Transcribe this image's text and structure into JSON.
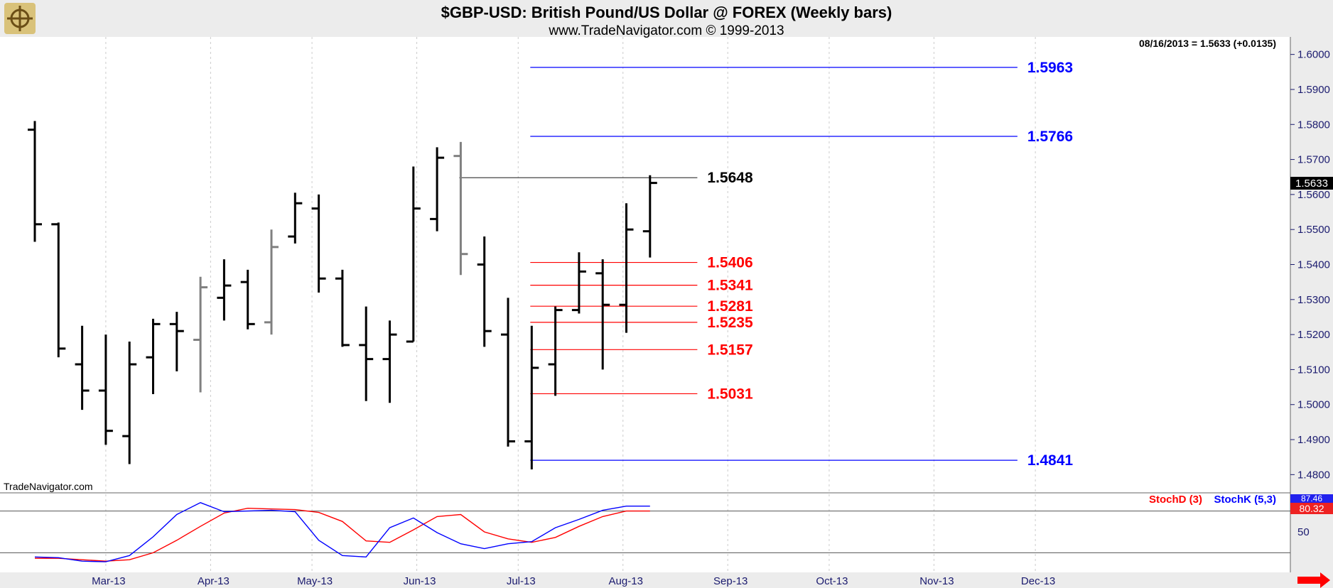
{
  "header": {
    "title": "$GBP-USD:  British Pound/US Dollar @ FOREX  (Weekly bars)",
    "subtitle": "www.TradeNavigator.com © 1999-2013",
    "last_info": "08/16/2013 = 1.5633 (+0.0135)",
    "watermark": "TradeNavigator.com",
    "last_price_tag": "1.5633"
  },
  "colors": {
    "bar": "#000000",
    "bar_gray": "#808080",
    "fib_red": "#ff0000",
    "fib_blue": "#0000ff",
    "stoch_d": "#ff0000",
    "stoch_k": "#0000ff",
    "grid": "#cccccc"
  },
  "chart_data": [
    {
      "type": "ohlc",
      "title": "$GBP-USD:  British Pound/US Dollar @ FOREX  (Weekly bars)",
      "ylim": [
        1.475,
        1.605
      ],
      "y_ticks": [
        "1.6000",
        "1.5900",
        "1.5800",
        "1.5700",
        "1.5600",
        "1.5500",
        "1.5400",
        "1.5300",
        "1.5200",
        "1.5100",
        "1.5000",
        "1.4900",
        "1.4800"
      ],
      "x_ticks": [
        "Mar-13",
        "Apr-13",
        "May-13",
        "Jun-13",
        "Jul-13",
        "Aug-13",
        "Sep-13",
        "Oct-13",
        "Nov-13",
        "Dec-13"
      ],
      "bars": [
        {
          "week": "2013-02-08",
          "open": 1.5785,
          "high": 1.581,
          "low": 1.5465,
          "close": 1.5515,
          "color": "black"
        },
        {
          "week": "2013-02-15",
          "open": 1.5515,
          "high": 1.552,
          "low": 1.5135,
          "close": 1.516,
          "color": "black"
        },
        {
          "week": "2013-02-22",
          "open": 1.5115,
          "high": 1.5225,
          "low": 1.4985,
          "close": 1.504,
          "color": "black"
        },
        {
          "week": "2013-03-01",
          "open": 1.504,
          "high": 1.52,
          "low": 1.4885,
          "close": 1.4925,
          "color": "black"
        },
        {
          "week": "2013-03-08",
          "open": 1.491,
          "high": 1.518,
          "low": 1.483,
          "close": 1.5115,
          "color": "black"
        },
        {
          "week": "2013-03-15",
          "open": 1.5135,
          "high": 1.5245,
          "low": 1.503,
          "close": 1.523,
          "color": "black"
        },
        {
          "week": "2013-03-22",
          "open": 1.523,
          "high": 1.5265,
          "low": 1.5095,
          "close": 1.521,
          "color": "black"
        },
        {
          "week": "2013-03-29",
          "open": 1.5185,
          "high": 1.5365,
          "low": 1.5035,
          "close": 1.5335,
          "color": "gray"
        },
        {
          "week": "2013-04-05",
          "open": 1.5305,
          "high": 1.5415,
          "low": 1.524,
          "close": 1.534,
          "color": "black"
        },
        {
          "week": "2013-04-12",
          "open": 1.535,
          "high": 1.5385,
          "low": 1.5215,
          "close": 1.523,
          "color": "black"
        },
        {
          "week": "2013-04-19",
          "open": 1.5235,
          "high": 1.55,
          "low": 1.52,
          "close": 1.545,
          "color": "gray"
        },
        {
          "week": "2013-04-26",
          "open": 1.548,
          "high": 1.5605,
          "low": 1.546,
          "close": 1.5575,
          "color": "black"
        },
        {
          "week": "2013-05-03",
          "open": 1.556,
          "high": 1.56,
          "low": 1.532,
          "close": 1.536,
          "color": "black"
        },
        {
          "week": "2013-05-10",
          "open": 1.536,
          "high": 1.5385,
          "low": 1.5165,
          "close": 1.517,
          "color": "black"
        },
        {
          "week": "2013-05-17",
          "open": 1.517,
          "high": 1.528,
          "low": 1.501,
          "close": 1.513,
          "color": "black"
        },
        {
          "week": "2013-05-24",
          "open": 1.513,
          "high": 1.524,
          "low": 1.5005,
          "close": 1.52,
          "color": "black"
        },
        {
          "week": "2013-05-31",
          "open": 1.518,
          "high": 1.568,
          "low": 1.518,
          "close": 1.556,
          "color": "black"
        },
        {
          "week": "2013-06-07",
          "open": 1.553,
          "high": 1.5735,
          "low": 1.5495,
          "close": 1.5705,
          "color": "black"
        },
        {
          "week": "2013-06-14",
          "open": 1.571,
          "high": 1.575,
          "low": 1.537,
          "close": 1.543,
          "color": "gray"
        },
        {
          "week": "2013-06-21",
          "open": 1.54,
          "high": 1.548,
          "low": 1.5165,
          "close": 1.521,
          "color": "black"
        },
        {
          "week": "2013-06-28",
          "open": 1.52,
          "high": 1.5305,
          "low": 1.488,
          "close": 1.4895,
          "color": "black"
        },
        {
          "week": "2013-07-05",
          "open": 1.4895,
          "high": 1.5225,
          "low": 1.4815,
          "close": 1.5105,
          "color": "black"
        },
        {
          "week": "2013-07-12",
          "open": 1.5115,
          "high": 1.528,
          "low": 1.5025,
          "close": 1.527,
          "color": "black"
        },
        {
          "week": "2013-07-19",
          "open": 1.527,
          "high": 1.5435,
          "low": 1.526,
          "close": 1.538,
          "color": "black"
        },
        {
          "week": "2013-07-26",
          "open": 1.5375,
          "high": 1.5415,
          "low": 1.51,
          "close": 1.5285,
          "color": "black"
        },
        {
          "week": "2013-08-02",
          "open": 1.5285,
          "high": 1.5575,
          "low": 1.5205,
          "close": 1.55,
          "color": "black"
        },
        {
          "week": "2013-08-09",
          "open": 1.5495,
          "high": 1.5655,
          "low": 1.542,
          "close": 1.5633,
          "color": "black"
        }
      ],
      "levels": [
        {
          "value": 1.5963,
          "label": "1.5963",
          "color": "blue",
          "from_week": "2013-07-05",
          "to": "2013-12-02"
        },
        {
          "value": 1.5766,
          "label": "1.5766",
          "color": "blue",
          "from_week": "2013-07-05",
          "to": "2013-12-02"
        },
        {
          "value": 1.5648,
          "label": "1.5648",
          "color": "black",
          "from_week": "2013-06-14",
          "to": "2013-08-23"
        },
        {
          "value": 1.5406,
          "label": "1.5406",
          "color": "red",
          "from_week": "2013-07-05",
          "to": "2013-08-23"
        },
        {
          "value": 1.5341,
          "label": "1.5341",
          "color": "red",
          "from_week": "2013-07-05",
          "to": "2013-08-23"
        },
        {
          "value": 1.5281,
          "label": "1.5281",
          "color": "red",
          "from_week": "2013-07-05",
          "to": "2013-08-23"
        },
        {
          "value": 1.5235,
          "label": "1.5235",
          "color": "red",
          "from_week": "2013-07-05",
          "to": "2013-08-23"
        },
        {
          "value": 1.5157,
          "label": "1.5157",
          "color": "red",
          "from_week": "2013-07-05",
          "to": "2013-08-23"
        },
        {
          "value": 1.5031,
          "label": "1.5031",
          "color": "red",
          "from_week": "2013-07-05",
          "to": "2013-08-23"
        },
        {
          "value": 1.4841,
          "label": "1.4841",
          "color": "blue",
          "from_week": "2013-07-05",
          "to": "2013-12-02"
        }
      ]
    },
    {
      "type": "line",
      "ylim": [
        0,
        100
      ],
      "y_ticks": [
        "50"
      ],
      "ref_lines": [
        80,
        20
      ],
      "legend": [
        "StochD (3)",
        "StochK (5,3)"
      ],
      "last_values": {
        "k": "87.46",
        "d": "80.32"
      },
      "series": [
        {
          "name": "StochD (3)",
          "values": [
            12,
            12,
            10,
            8,
            10,
            20,
            38,
            58,
            77,
            84,
            83,
            82,
            78,
            65,
            37,
            35,
            53,
            72,
            75,
            50,
            40,
            35,
            42,
            58,
            72,
            80,
            80
          ]
        },
        {
          "name": "StochK (5,3)",
          "values": [
            14,
            13,
            8,
            7,
            16,
            43,
            75,
            92,
            79,
            80,
            81,
            79,
            38,
            16,
            14,
            56,
            70,
            49,
            33,
            26,
            33,
            36,
            56,
            68,
            81,
            87,
            87
          ]
        }
      ]
    }
  ]
}
